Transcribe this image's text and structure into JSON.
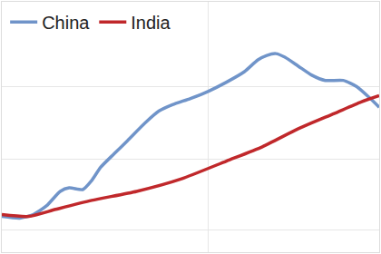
{
  "chart_data": {
    "type": "line",
    "series": [
      {
        "name": "China",
        "color": "#7094c9",
        "line_style": "solid",
        "x": [
          0,
          2,
          3.5,
          5,
          6.5,
          7.5,
          9,
          10,
          11,
          12.5,
          14,
          16,
          17.5,
          19,
          21,
          23,
          25,
          27,
          28.5,
          29.5,
          30.5,
          31.5,
          33,
          34.5,
          36,
          38,
          39.5,
          41,
          42
        ],
        "values": [
          14.3,
          13.6,
          15,
          18.6,
          24.3,
          25.7,
          25,
          28.6,
          33.9,
          39.3,
          44.6,
          51.8,
          56.4,
          58.9,
          61.4,
          64.3,
          67.9,
          72.1,
          76.8,
          78.6,
          79.3,
          77.9,
          74.3,
          70.7,
          68.6,
          68.6,
          66.1,
          61.4,
          57.9
        ]
      },
      {
        "name": "India",
        "color": "#c0282b",
        "line_style": "solid",
        "x": [
          0,
          3,
          6,
          10,
          15,
          20,
          25,
          29,
          33,
          37,
          40,
          42
        ],
        "values": [
          15,
          14.3,
          17.1,
          20.7,
          24.3,
          29.3,
          36.4,
          42.1,
          49.3,
          55.4,
          60,
          62.5
        ]
      }
    ],
    "xlim": [
      0,
      42
    ],
    "xticks": [
      23
    ],
    "ylim": [
      0,
      100
    ],
    "yticks": [
      9,
      37,
      66
    ],
    "grid": true,
    "legend": "upper left",
    "tick_labels": false
  }
}
